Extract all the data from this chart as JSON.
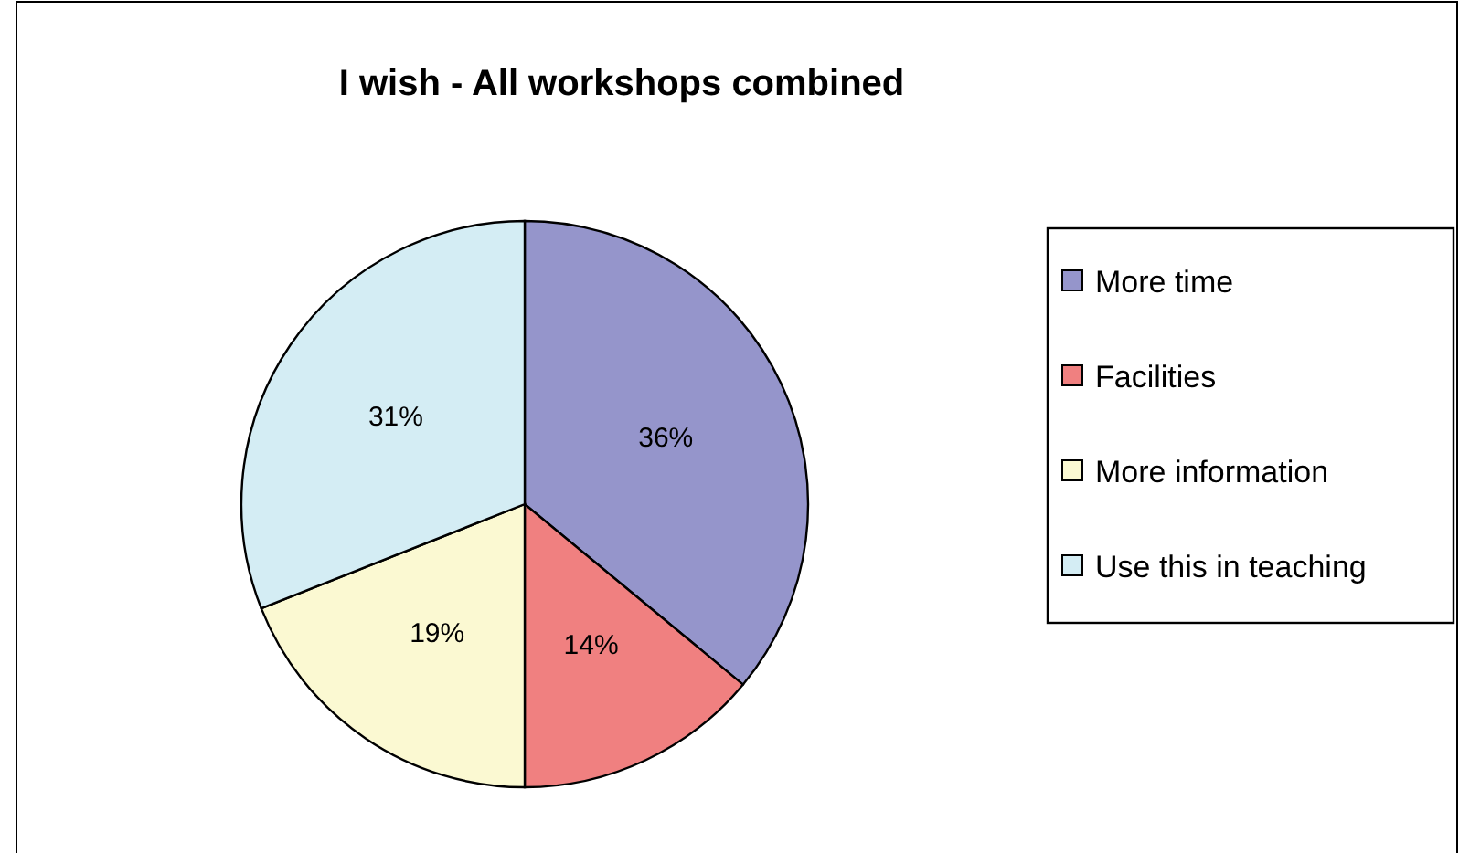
{
  "chart_data": {
    "type": "pie",
    "title": "I wish - All workshops combined",
    "categories": [
      "More time",
      "Facilities",
      "More information",
      "Use this in teaching"
    ],
    "values": [
      36,
      14,
      19,
      31
    ],
    "colors": [
      "#9595cb",
      "#f08080",
      "#fbf9d2",
      "#d4edf4"
    ],
    "value_labels": [
      "36%",
      "14%",
      "19%",
      "31%"
    ],
    "legend": "right"
  }
}
